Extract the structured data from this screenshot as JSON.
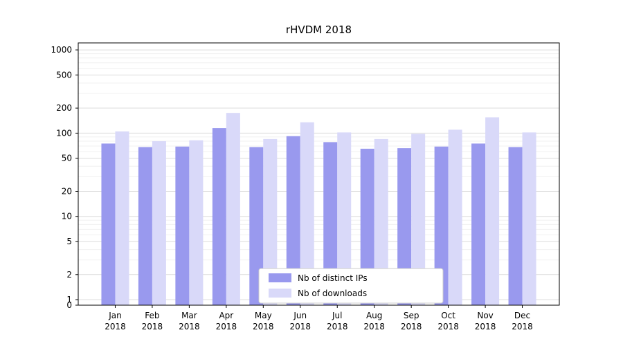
{
  "chart_data": {
    "type": "bar",
    "title": "rHVDM 2018",
    "categories": [
      "Jan 2018",
      "Feb 2018",
      "Mar 2018",
      "Apr 2018",
      "May 2018",
      "Jun 2018",
      "Jul 2018",
      "Aug 2018",
      "Sep 2018",
      "Oct 2018",
      "Nov 2018",
      "Dec 2018"
    ],
    "series": [
      {
        "name": "Nb of distinct IPs",
        "color": "#9999ee",
        "values": [
          75,
          68,
          69,
          115,
          68,
          92,
          78,
          65,
          66,
          69,
          75,
          68
        ]
      },
      {
        "name": "Nb of downloads",
        "color": "#d9d9f9",
        "values": [
          105,
          80,
          82,
          175,
          85,
          135,
          102,
          85,
          98,
          110,
          155,
          102
        ]
      }
    ],
    "yscale": "symlog",
    "yticks": [
      0,
      1,
      2,
      5,
      10,
      20,
      50,
      100,
      200,
      500,
      1000
    ],
    "ylim": [
      0,
      1000
    ],
    "grid": true,
    "legend_position": "lower center",
    "axis_color": "#000000",
    "grid_major_color": "#dcdcdc",
    "grid_minor_color": "#f0f0f0"
  }
}
